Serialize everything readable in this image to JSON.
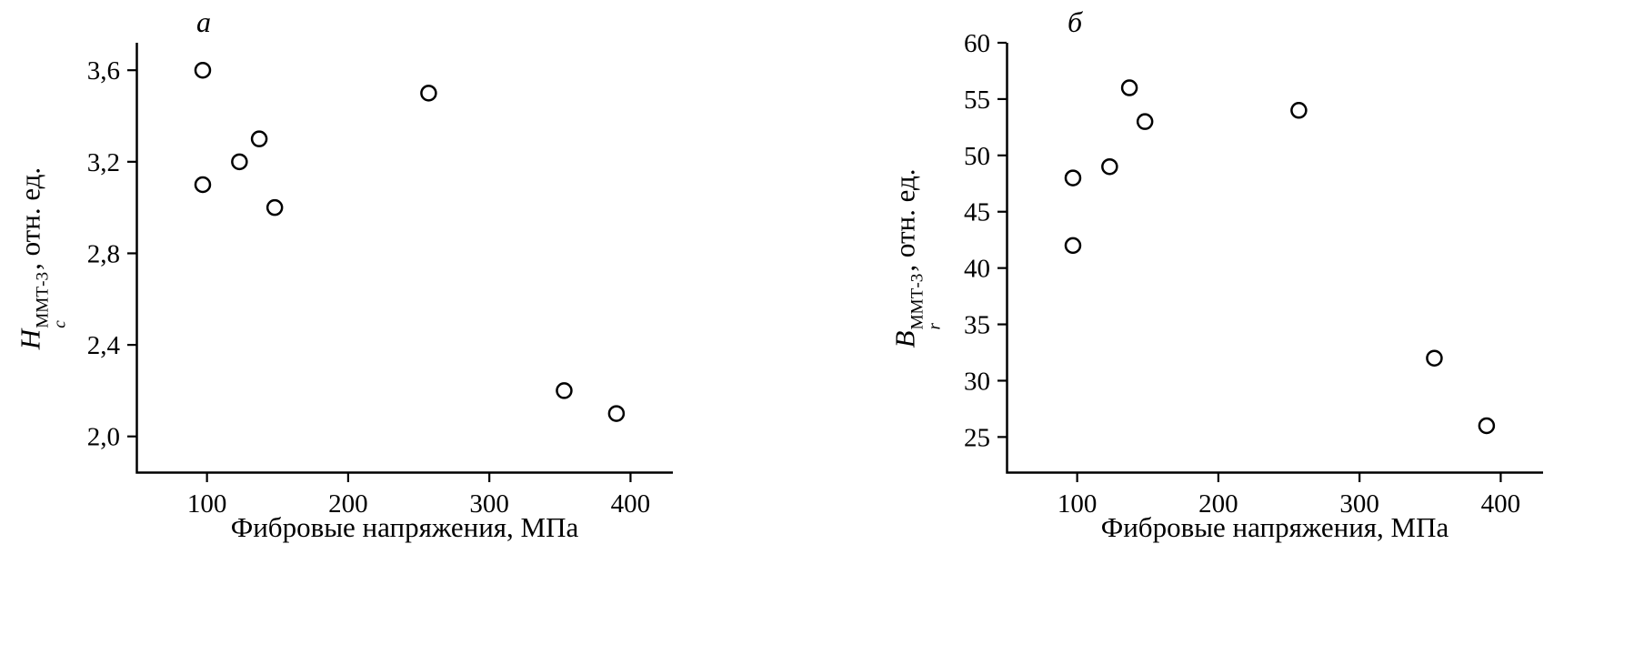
{
  "page": {
    "background": "#ffffff",
    "text_color": "#000000"
  },
  "chart_data": [
    {
      "type": "scatter",
      "panel_label": "а",
      "title": "",
      "xlabel": "Фибровые напряжения, МПа",
      "ylabel": {
        "symbol": "H",
        "sub": "c",
        "sup": "ММТ-3",
        "rest": ", отн. ед."
      },
      "x": [
        97,
        97,
        123,
        137,
        148,
        257,
        353,
        390
      ],
      "y": [
        3.6,
        3.1,
        3.2,
        3.3,
        3.0,
        3.5,
        2.2,
        2.1
      ],
      "xlim": [
        50,
        430
      ],
      "ylim": [
        1.84,
        3.72
      ],
      "xticks": [
        100,
        200,
        300,
        400
      ],
      "xtick_labels": [
        "100",
        "200",
        "300",
        "400"
      ],
      "yticks": [
        2.0,
        2.4,
        2.8,
        3.2,
        3.6
      ],
      "ytick_labels": [
        "2,0",
        "2,4",
        "2,8",
        "3,2",
        "3,6"
      ],
      "grid": false,
      "legend": "none",
      "marker": "open-circle",
      "marker_color": "#000000",
      "axis_color": "#000000"
    },
    {
      "type": "scatter",
      "panel_label": "б",
      "title": "",
      "xlabel": "Фибровые напряжения, МПа",
      "ylabel": {
        "symbol": "B",
        "sub": "r",
        "sup": "ММТ-3",
        "rest": ", отн. ед."
      },
      "x": [
        97,
        97,
        123,
        137,
        148,
        257,
        353,
        390
      ],
      "y": [
        48,
        42,
        49,
        56,
        53,
        54,
        32,
        26
      ],
      "xlim": [
        50,
        430
      ],
      "ylim": [
        21.8,
        60
      ],
      "xticks": [
        100,
        200,
        300,
        400
      ],
      "xtick_labels": [
        "100",
        "200",
        "300",
        "400"
      ],
      "yticks": [
        25,
        30,
        35,
        40,
        45,
        50,
        55,
        60
      ],
      "ytick_labels": [
        "25",
        "30",
        "35",
        "40",
        "45",
        "50",
        "55",
        "60"
      ],
      "grid": false,
      "legend": "none",
      "marker": "open-circle",
      "marker_color": "#000000",
      "axis_color": "#000000"
    }
  ]
}
